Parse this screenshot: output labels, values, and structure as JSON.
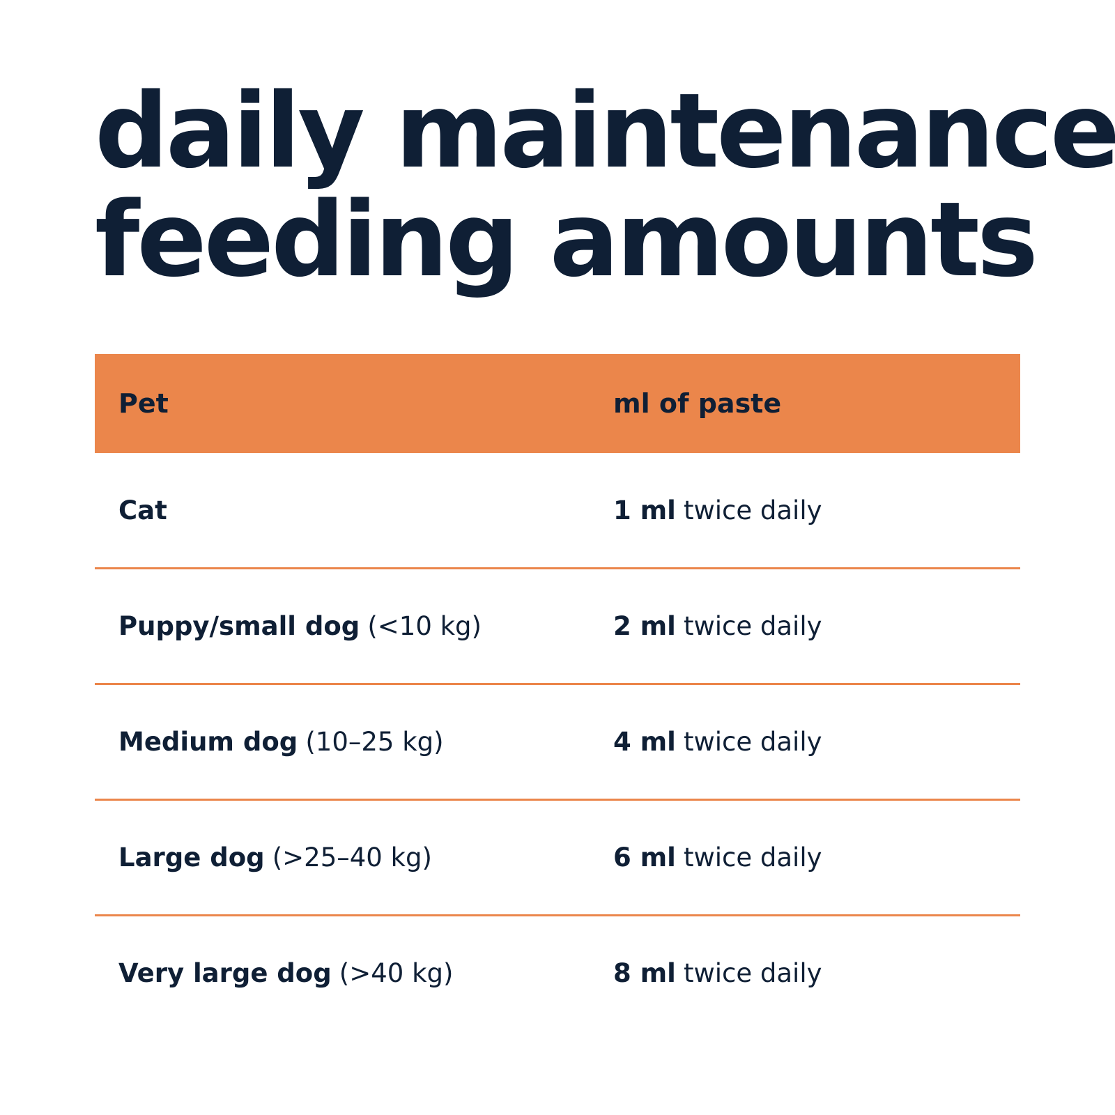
{
  "header": {
    "title_lines": [
      "daily maintenance",
      "feeding amounts"
    ]
  },
  "table": {
    "columns": [
      "Pet",
      "ml of paste"
    ],
    "rows": [
      [
        {
          "bold": "Cat"
        },
        {
          "bold": "1 ml",
          "rest": "twice daily"
        }
      ],
      [
        {
          "bold": "Puppy/small dog",
          "rest": "(<10 kg)"
        },
        {
          "bold": "2 ml",
          "rest": "twice daily"
        }
      ],
      [
        {
          "bold": "Medium dog",
          "rest": "(10–25 kg)"
        },
        {
          "bold": "4 ml",
          "rest": "twice daily"
        }
      ],
      [
        {
          "bold": "Large dog",
          "rest": "(>25–40 kg)"
        },
        {
          "bold": "6 ml",
          "rest": "twice daily"
        }
      ],
      [
        {
          "bold": "Very large dog",
          "rest": "(>40 kg)"
        },
        {
          "bold": "8 ml",
          "rest": "twice daily"
        }
      ]
    ]
  }
}
